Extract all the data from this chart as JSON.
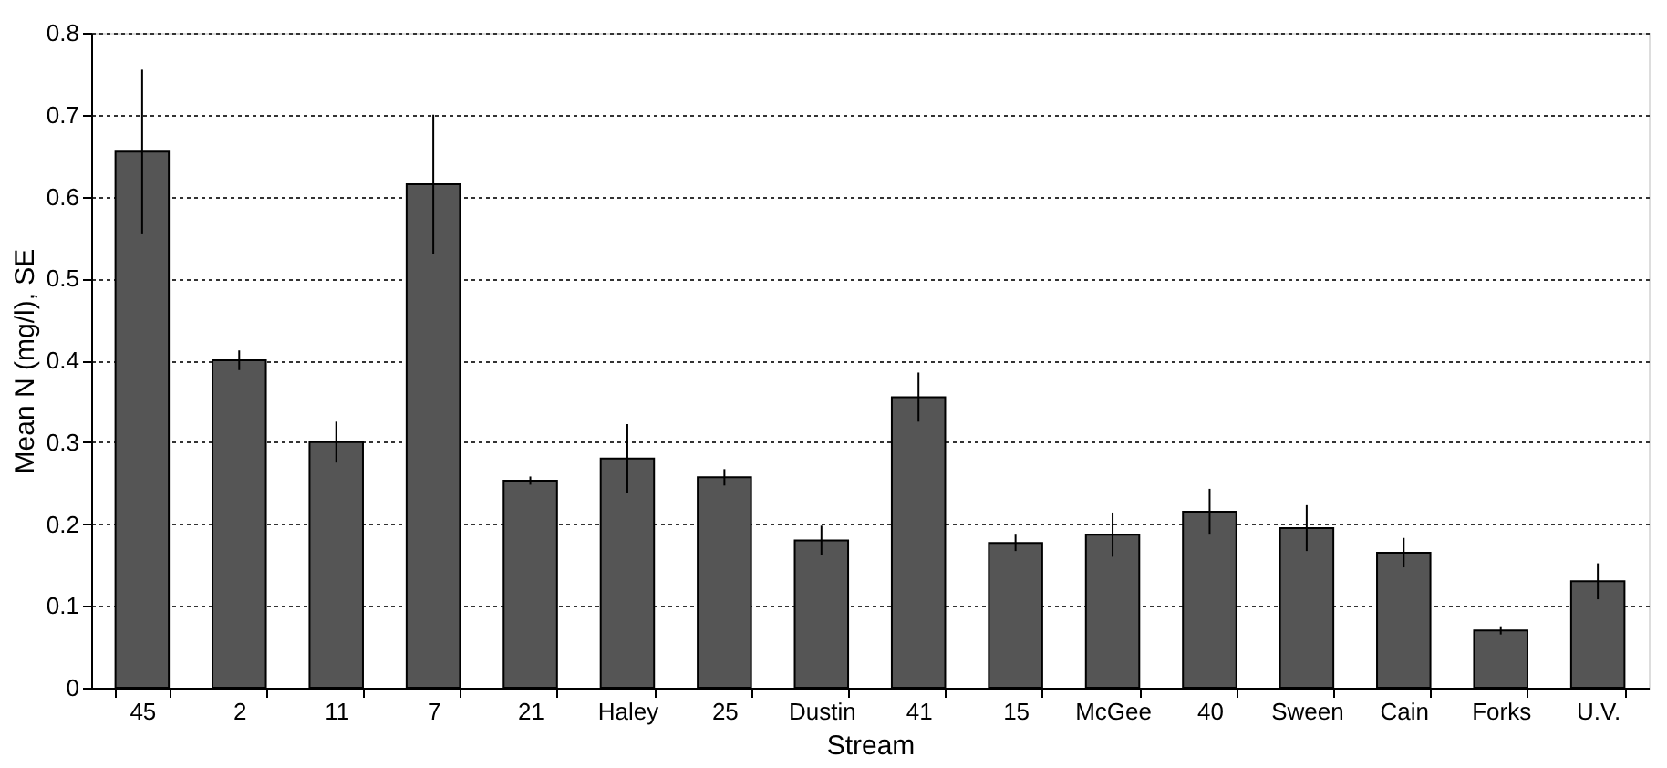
{
  "chart_data": {
    "type": "bar",
    "xlabel": "Stream",
    "ylabel": "Mean N (mg/l), SE",
    "categories": [
      "45",
      "2",
      "11",
      "7",
      "21",
      "Haley",
      "25",
      "Dustin",
      "41",
      "15",
      "McGee",
      "40",
      "Sween",
      "Cain",
      "Forks",
      "U.V."
    ],
    "values": [
      0.655,
      0.4,
      0.3,
      0.615,
      0.253,
      0.28,
      0.257,
      0.18,
      0.355,
      0.177,
      0.187,
      0.215,
      0.195,
      0.165,
      0.07,
      0.13
    ],
    "errors": [
      0.1,
      0.012,
      0.025,
      0.085,
      0.005,
      0.042,
      0.01,
      0.018,
      0.03,
      0.01,
      0.027,
      0.028,
      0.028,
      0.018,
      0.005,
      0.022
    ],
    "color": "#555555",
    "ylim": [
      0,
      0.8
    ],
    "yticks": [
      0,
      0.1,
      0.2,
      0.3,
      0.4,
      0.5,
      0.6,
      0.7,
      0.8
    ],
    "grid": "y"
  }
}
